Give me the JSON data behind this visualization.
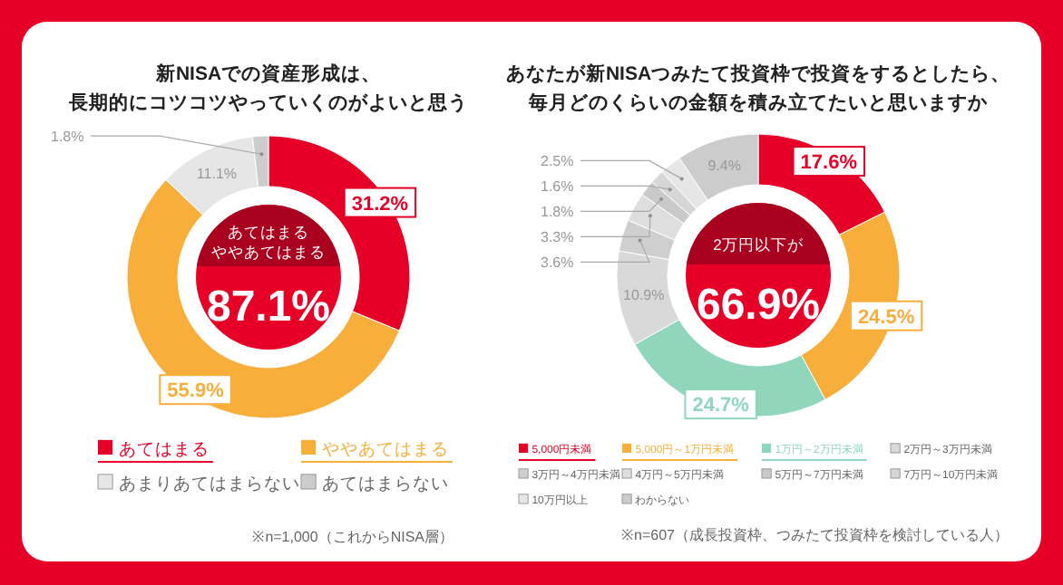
{
  "chart_data": [
    {
      "type": "donut",
      "title": "新NISAでの資産形成は、長期的にコツコツやっていくのがよいと思う",
      "categories": [
        "あてはまる",
        "ややあてはまる",
        "あまりあてはまらない",
        "あてはまらない"
      ],
      "values": [
        31.2,
        55.9,
        11.1,
        1.8
      ],
      "colors": [
        "#e60028",
        "#f7ae3b",
        "#e6e6e6",
        "#cccccc"
      ],
      "value_labels": [
        "31.2%",
        "55.9%",
        "11.1%",
        "1.8%"
      ],
      "legend": "bottom",
      "annotations": [
        "あてはまるややあてはまる",
        "87.1%",
        "※n=1,000（これからNISA層）"
      ]
    },
    {
      "type": "donut",
      "title": "あなたが新NISAつみたて投資枠で投資をするとしたら、毎月どのくらいの金額を積み立てたいと思いますか",
      "categories": [
        "5,000円未満",
        "5,000円～1万円未満",
        "1万円～2万円未満",
        "2万円～3万円未満",
        "3万円～4万円未満",
        "4万円～5万円未満",
        "5万円～7万円未満",
        "7万円～10万円未満",
        "10万円以上",
        "わからない"
      ],
      "values": [
        17.6,
        24.5,
        24.7,
        10.9,
        3.6,
        3.3,
        1.8,
        1.6,
        2.5,
        9.4
      ],
      "colors": [
        "#e60028",
        "#f7ae3b",
        "#8fd6bc",
        "#d9d9d9",
        "#cfcfcf",
        "#dedede",
        "#c9c9c9",
        "#d6d6d6",
        "#e6e6e6",
        "#cccccc"
      ],
      "value_labels": [
        "17.6%",
        "24.5%",
        "24.7%",
        "10.9%",
        "3.6%",
        "3.3%",
        "1.8%",
        "1.6%",
        "2.5%",
        "9.4%"
      ],
      "legend": "bottom",
      "annotations": [
        "2万円以下が",
        "66.9%",
        "※n=607（成長投資枠、つみたて投資枠を検討している人）"
      ]
    }
  ]
}
